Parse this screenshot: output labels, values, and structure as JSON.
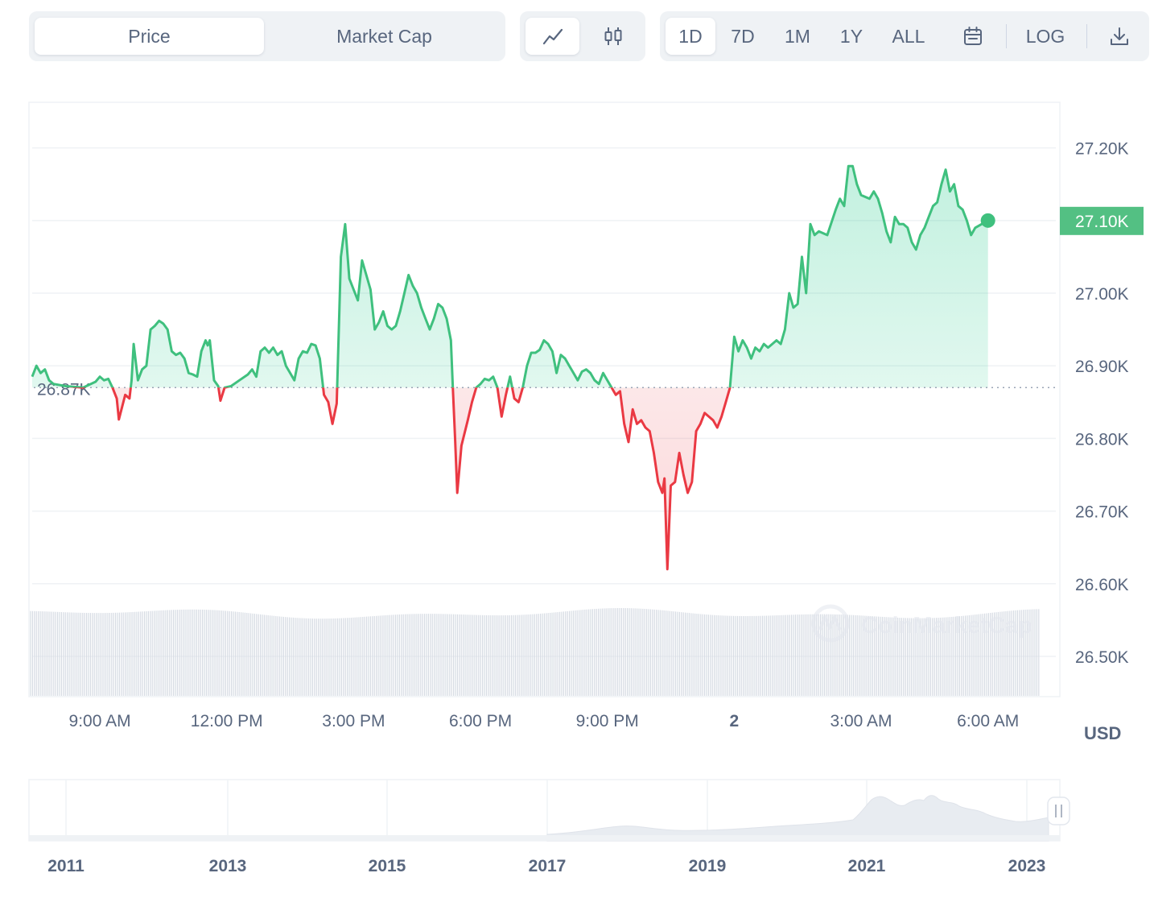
{
  "metric_tabs": [
    "Price",
    "Market Cap"
  ],
  "active_metric": "Price",
  "chart_types": [
    "line-chart-icon",
    "candlestick-icon"
  ],
  "active_chart_type": "line-chart-icon",
  "ranges": [
    "1D",
    "7D",
    "1M",
    "1Y",
    "ALL"
  ],
  "active_range": "1D",
  "date_picker_icon": "calendar-icon",
  "log_label": "LOG",
  "download_icon": "download-icon",
  "currency": "USD",
  "watermark": "CoinMarketCap",
  "colors": {
    "up": "#16c784",
    "line_up": "#3fc07e",
    "down": "#ea3943",
    "grid": "#eff2f5",
    "text": "#58667e",
    "badge": "#53c083"
  },
  "chart_data": {
    "type": "line",
    "baseline": 26870,
    "baseline_label": "26.87K",
    "current_value_label": "27.10K",
    "y_ticks": [
      "27.20K",
      "27.10K",
      "27.00K",
      "26.90K",
      "26.80K",
      "26.70K",
      "26.60K",
      "26.50K"
    ],
    "y_tick_values": [
      27200,
      27100,
      27000,
      26900,
      26800,
      26700,
      26600,
      26500
    ],
    "ylim": [
      26480,
      27265
    ],
    "x_tick_labels": [
      "9:00 AM",
      "12:00 PM",
      "3:00 PM",
      "6:00 PM",
      "9:00 PM",
      "2",
      "3:00 AM",
      "6:00 AM"
    ],
    "x_tick_hours": [
      9,
      12,
      15,
      18,
      21,
      24,
      27,
      30
    ],
    "xlim_hours": [
      7.4,
      31.3
    ],
    "series": [
      {
        "values": [
          [
            7.4,
            26885
          ],
          [
            7.5,
            26900
          ],
          [
            7.6,
            26890
          ],
          [
            7.7,
            26895
          ],
          [
            7.8,
            26880
          ],
          [
            7.9,
            26875
          ],
          [
            8.2,
            26872
          ],
          [
            8.6,
            26870
          ],
          [
            8.9,
            26878
          ],
          [
            9.0,
            26885
          ],
          [
            9.1,
            26880
          ],
          [
            9.2,
            26882
          ],
          [
            9.3,
            26870
          ],
          [
            9.4,
            26855
          ],
          [
            9.45,
            26826
          ],
          [
            9.6,
            26860
          ],
          [
            9.7,
            26855
          ],
          [
            9.75,
            26880
          ],
          [
            9.8,
            26930
          ],
          [
            9.9,
            26880
          ],
          [
            10.0,
            26895
          ],
          [
            10.1,
            26900
          ],
          [
            10.2,
            26950
          ],
          [
            10.3,
            26955
          ],
          [
            10.4,
            26962
          ],
          [
            10.5,
            26958
          ],
          [
            10.6,
            26950
          ],
          [
            10.7,
            26920
          ],
          [
            10.8,
            26915
          ],
          [
            10.9,
            26918
          ],
          [
            11.0,
            26910
          ],
          [
            11.1,
            26890
          ],
          [
            11.2,
            26888
          ],
          [
            11.3,
            26885
          ],
          [
            11.4,
            26920
          ],
          [
            11.5,
            26935
          ],
          [
            11.55,
            26928
          ],
          [
            11.6,
            26935
          ],
          [
            11.7,
            26880
          ],
          [
            11.8,
            26872
          ],
          [
            11.85,
            26852
          ],
          [
            11.95,
            26870
          ],
          [
            12.1,
            26872
          ],
          [
            12.3,
            26880
          ],
          [
            12.5,
            26888
          ],
          [
            12.6,
            26895
          ],
          [
            12.7,
            26885
          ],
          [
            12.8,
            26920
          ],
          [
            12.9,
            26925
          ],
          [
            13.0,
            26918
          ],
          [
            13.1,
            26925
          ],
          [
            13.2,
            26915
          ],
          [
            13.3,
            26920
          ],
          [
            13.4,
            26900
          ],
          [
            13.5,
            26890
          ],
          [
            13.6,
            26880
          ],
          [
            13.7,
            26910
          ],
          [
            13.8,
            26920
          ],
          [
            13.9,
            26918
          ],
          [
            14.0,
            26930
          ],
          [
            14.1,
            26928
          ],
          [
            14.2,
            26910
          ],
          [
            14.3,
            26860
          ],
          [
            14.4,
            26850
          ],
          [
            14.5,
            26820
          ],
          [
            14.6,
            26848
          ],
          [
            14.7,
            27050
          ],
          [
            14.8,
            27095
          ],
          [
            14.9,
            27020
          ],
          [
            15.0,
            27005
          ],
          [
            15.1,
            26990
          ],
          [
            15.2,
            27045
          ],
          [
            15.3,
            27025
          ],
          [
            15.4,
            27005
          ],
          [
            15.5,
            26950
          ],
          [
            15.6,
            26960
          ],
          [
            15.7,
            26975
          ],
          [
            15.8,
            26955
          ],
          [
            15.9,
            26950
          ],
          [
            16.0,
            26955
          ],
          [
            16.1,
            26975
          ],
          [
            16.2,
            27000
          ],
          [
            16.3,
            27025
          ],
          [
            16.4,
            27010
          ],
          [
            16.5,
            27000
          ],
          [
            16.6,
            26980
          ],
          [
            16.7,
            26965
          ],
          [
            16.8,
            26950
          ],
          [
            16.9,
            26965
          ],
          [
            17.0,
            26985
          ],
          [
            17.1,
            26980
          ],
          [
            17.2,
            26965
          ],
          [
            17.3,
            26935
          ],
          [
            17.35,
            26865
          ],
          [
            17.4,
            26800
          ],
          [
            17.45,
            26725
          ],
          [
            17.55,
            26790
          ],
          [
            17.7,
            26825
          ],
          [
            17.8,
            26850
          ],
          [
            17.9,
            26870
          ],
          [
            18.0,
            26875
          ],
          [
            18.1,
            26882
          ],
          [
            18.2,
            26880
          ],
          [
            18.3,
            26885
          ],
          [
            18.4,
            26870
          ],
          [
            18.5,
            26830
          ],
          [
            18.6,
            26860
          ],
          [
            18.7,
            26885
          ],
          [
            18.8,
            26855
          ],
          [
            18.9,
            26850
          ],
          [
            19.0,
            26870
          ],
          [
            19.1,
            26900
          ],
          [
            19.2,
            26918
          ],
          [
            19.3,
            26918
          ],
          [
            19.4,
            26922
          ],
          [
            19.5,
            26935
          ],
          [
            19.6,
            26930
          ],
          [
            19.7,
            26920
          ],
          [
            19.8,
            26890
          ],
          [
            19.9,
            26915
          ],
          [
            20.0,
            26910
          ],
          [
            20.1,
            26900
          ],
          [
            20.2,
            26890
          ],
          [
            20.3,
            26880
          ],
          [
            20.4,
            26892
          ],
          [
            20.5,
            26895
          ],
          [
            20.6,
            26890
          ],
          [
            20.7,
            26880
          ],
          [
            20.8,
            26875
          ],
          [
            20.9,
            26890
          ],
          [
            21.0,
            26880
          ],
          [
            21.1,
            26870
          ],
          [
            21.2,
            26860
          ],
          [
            21.3,
            26865
          ],
          [
            21.4,
            26820
          ],
          [
            21.5,
            26795
          ],
          [
            21.6,
            26840
          ],
          [
            21.7,
            26820
          ],
          [
            21.8,
            26825
          ],
          [
            21.9,
            26815
          ],
          [
            22.0,
            26810
          ],
          [
            22.1,
            26780
          ],
          [
            22.2,
            26740
          ],
          [
            22.3,
            26725
          ],
          [
            22.35,
            26745
          ],
          [
            22.42,
            26620
          ],
          [
            22.5,
            26735
          ],
          [
            22.6,
            26740
          ],
          [
            22.7,
            26780
          ],
          [
            22.8,
            26750
          ],
          [
            22.9,
            26725
          ],
          [
            23.0,
            26740
          ],
          [
            23.1,
            26810
          ],
          [
            23.2,
            26820
          ],
          [
            23.3,
            26835
          ],
          [
            23.4,
            26830
          ],
          [
            23.5,
            26825
          ],
          [
            23.6,
            26815
          ],
          [
            23.7,
            26830
          ],
          [
            23.8,
            26850
          ],
          [
            23.9,
            26870
          ],
          [
            24.0,
            26940
          ],
          [
            24.1,
            26920
          ],
          [
            24.2,
            26935
          ],
          [
            24.3,
            26925
          ],
          [
            24.4,
            26910
          ],
          [
            24.5,
            26925
          ],
          [
            24.6,
            26920
          ],
          [
            24.7,
            26930
          ],
          [
            24.8,
            26925
          ],
          [
            24.9,
            26930
          ],
          [
            25.0,
            26935
          ],
          [
            25.1,
            26930
          ],
          [
            25.2,
            26950
          ],
          [
            25.3,
            27000
          ],
          [
            25.4,
            26980
          ],
          [
            25.5,
            26985
          ],
          [
            25.6,
            27050
          ],
          [
            25.7,
            27000
          ],
          [
            25.8,
            27095
          ],
          [
            25.9,
            27080
          ],
          [
            26.0,
            27085
          ],
          [
            26.2,
            27080
          ],
          [
            26.4,
            27115
          ],
          [
            26.5,
            27130
          ],
          [
            26.6,
            27120
          ],
          [
            26.7,
            27175
          ],
          [
            26.8,
            27175
          ],
          [
            26.9,
            27150
          ],
          [
            27.0,
            27135
          ],
          [
            27.2,
            27130
          ],
          [
            27.3,
            27140
          ],
          [
            27.4,
            27130
          ],
          [
            27.5,
            27110
          ],
          [
            27.6,
            27085
          ],
          [
            27.7,
            27070
          ],
          [
            27.8,
            27105
          ],
          [
            27.9,
            27095
          ],
          [
            28.0,
            27095
          ],
          [
            28.1,
            27090
          ],
          [
            28.2,
            27070
          ],
          [
            28.3,
            27060
          ],
          [
            28.4,
            27080
          ],
          [
            28.5,
            27090
          ],
          [
            28.6,
            27105
          ],
          [
            28.7,
            27120
          ],
          [
            28.8,
            27125
          ],
          [
            28.9,
            27150
          ],
          [
            29.0,
            27170
          ],
          [
            29.1,
            27140
          ],
          [
            29.2,
            27150
          ],
          [
            29.3,
            27120
          ],
          [
            29.4,
            27115
          ],
          [
            29.5,
            27100
          ],
          [
            29.6,
            27080
          ],
          [
            29.7,
            27090
          ],
          [
            29.85,
            27095
          ],
          [
            30.0,
            27100
          ]
        ]
      }
    ]
  },
  "navigator": {
    "labels": [
      "2011",
      "2013",
      "2015",
      "2017",
      "2019",
      "2021",
      "2023"
    ],
    "handle_icon": "pause-handle-icon"
  }
}
